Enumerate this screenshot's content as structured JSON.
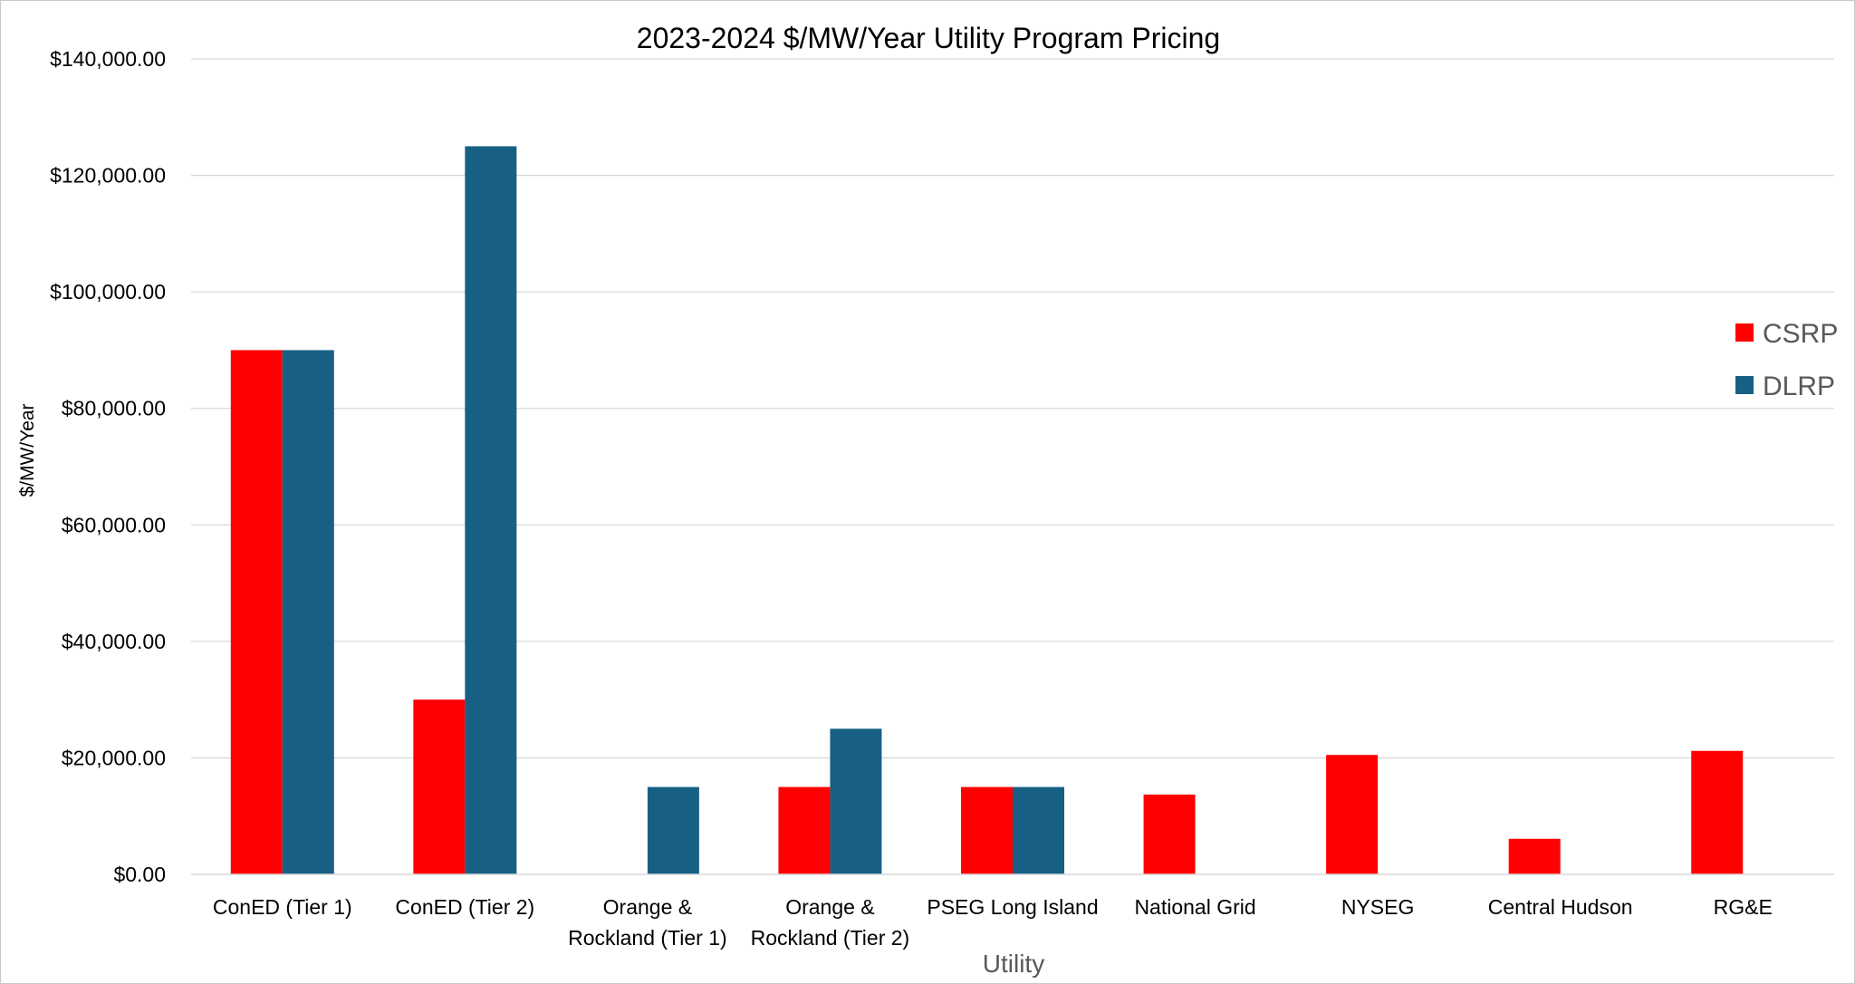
{
  "chart_data": {
    "type": "bar",
    "title": "2023-2024  $/MW/Year Utility Program Pricing",
    "xlabel": "Utility",
    "ylabel": "$/MW/Year",
    "ylim": [
      0,
      140000
    ],
    "yticks": [
      "$0.00",
      "$20,000.00",
      "$40,000.00",
      "$60,000.00",
      "$80,000.00",
      "$100,000.00",
      "$120,000.00",
      "$140,000.00"
    ],
    "categories": [
      [
        "ConED (Tier 1)"
      ],
      [
        "ConED (Tier 2)"
      ],
      [
        "Orange &",
        "Rockland (Tier 1)"
      ],
      [
        "Orange &",
        "Rockland (Tier 2)"
      ],
      [
        "PSEG Long Island"
      ],
      [
        "National Grid"
      ],
      [
        "NYSEG"
      ],
      [
        "Central Hudson"
      ],
      [
        "RG&E"
      ]
    ],
    "series": [
      {
        "name": "CSRP",
        "color": "#ff0000",
        "values": [
          90000,
          30000,
          null,
          15000,
          15000,
          13700,
          20500,
          6100,
          21200
        ]
      },
      {
        "name": "DLRP",
        "color": "#176084",
        "values": [
          90000,
          125000,
          15000,
          25000,
          15000,
          null,
          null,
          null,
          null
        ]
      }
    ],
    "grid": true,
    "legend_position": "right"
  }
}
